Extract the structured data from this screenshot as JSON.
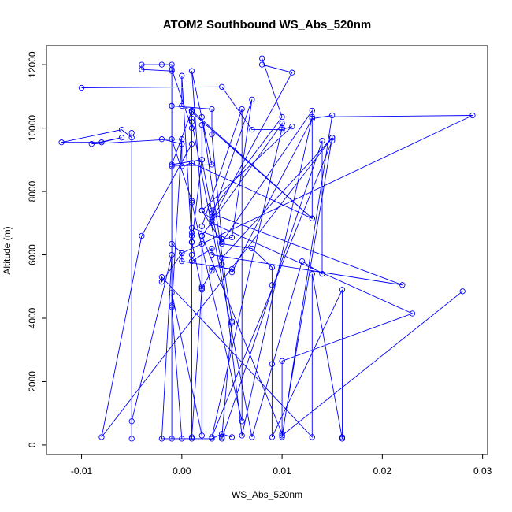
{
  "colors": {
    "series": "#0000ff",
    "axis": "#000000",
    "background": "#ffffff"
  },
  "chart_data": {
    "type": "line",
    "title": "ATOM2 Southbound WS_Abs_520nm",
    "xlabel": "WS_Abs_520nm",
    "ylabel": "Altitude (m)",
    "xlim": [
      -0.0135,
      0.0305
    ],
    "ylim": [
      -300,
      12600
    ],
    "x_ticks": [
      -0.01,
      0.0,
      0.01,
      0.02,
      0.03
    ],
    "x_tick_labels": [
      "-0.01",
      "0.00",
      "0.01",
      "0.02",
      "0.03"
    ],
    "y_ticks": [
      0,
      2000,
      4000,
      6000,
      8000,
      10000,
      12000
    ],
    "y_tick_labels": [
      "0",
      "2000",
      "4000",
      "6000",
      "8000",
      "10000",
      "12000"
    ],
    "grid": false,
    "markers": "open-circle",
    "series": [
      {
        "points": [
          [
            -0.01,
            11270
          ],
          [
            0.004,
            11300
          ],
          [
            0.007,
            9950
          ],
          [
            0.01,
            9950
          ],
          [
            0.011,
            10050
          ],
          [
            0.002,
            7400
          ],
          [
            0.001,
            11800
          ],
          [
            0.003,
            8850
          ],
          [
            -0.001,
            8800
          ],
          [
            -0.001,
            10700
          ],
          [
            -0.001,
            10700
          ],
          [
            0.003,
            10600
          ],
          [
            0.003,
            9800
          ],
          [
            0.004,
            6500
          ],
          [
            0.005,
            6550
          ],
          [
            0.007,
            10900
          ],
          [
            0.003,
            7200
          ],
          [
            0.003,
            7400
          ],
          [
            0.01,
            10350
          ],
          [
            0.008,
            12200
          ],
          [
            0.008,
            12000
          ],
          [
            0.011,
            11750
          ],
          [
            0.003,
            7100
          ],
          [
            0.002,
            7400
          ],
          [
            0.004,
            6400
          ],
          [
            0.013,
            10550
          ],
          [
            0.013,
            10300
          ],
          [
            0.013,
            7150
          ],
          [
            0.001,
            10550
          ],
          [
            -0.001,
            8850
          ],
          [
            0.002,
            9000
          ],
          [
            0.004,
            5700
          ],
          [
            0.006,
            300
          ],
          [
            0.013,
            10350
          ],
          [
            0.029,
            10400
          ],
          [
            0.0,
            6050
          ],
          [
            -0.001,
            6350
          ],
          [
            -0.001,
            4350
          ],
          [
            0.0,
            9650
          ],
          [
            -0.002,
            9650
          ],
          [
            0.0,
            9500
          ],
          [
            0.0,
            8800
          ],
          [
            0.001,
            8900
          ],
          [
            0.013,
            7150
          ],
          [
            0.001,
            10500
          ],
          [
            0.001,
            9500
          ],
          [
            -0.004,
            6600
          ],
          [
            -0.008,
            250
          ],
          [
            0.015,
            9700
          ],
          [
            0.015,
            9600
          ],
          [
            0.003,
            250
          ],
          [
            0.01,
            10000
          ],
          [
            0.01,
            10150
          ],
          [
            0.002,
            6600
          ],
          [
            0.002,
            6350
          ],
          [
            0.002,
            5000
          ],
          [
            0.002,
            4900
          ],
          [
            0.001,
            6400
          ],
          [
            0.001,
            6700
          ],
          [
            0.001,
            6850
          ],
          [
            0.004,
            6500
          ],
          [
            0.004,
            6350
          ],
          [
            0.007,
            6200
          ],
          [
            0.009,
            5600
          ],
          [
            0.009,
            5050
          ],
          [
            0.009,
            2550
          ],
          [
            0.009,
            250
          ],
          [
            0.016,
            4900
          ],
          [
            0.016,
            250
          ],
          [
            0.016,
            200
          ],
          [
            0.013,
            5400
          ],
          [
            0.013,
            250
          ],
          [
            -0.002,
            5300
          ],
          [
            -0.002,
            5150
          ],
          [
            0.0,
            6050
          ],
          [
            0.0,
            5800
          ],
          [
            0.005,
            5550
          ],
          [
            0.005,
            5450
          ],
          [
            0.013,
            10300
          ],
          [
            0.015,
            10400
          ],
          [
            0.01,
            250
          ],
          [
            0.01,
            300
          ],
          [
            0.028,
            4850
          ],
          [
            0.01,
            300
          ],
          [
            0.015,
            9700
          ],
          [
            0.004,
            5900
          ],
          [
            0.004,
            5700
          ],
          [
            0.003,
            5600
          ],
          [
            0.003,
            5500
          ],
          [
            0.002,
            4950
          ],
          [
            0.001,
            250
          ],
          [
            0.001,
            200
          ],
          [
            0.001,
            10300
          ],
          [
            0.001,
            10200
          ],
          [
            0.007,
            250
          ],
          [
            0.012,
            5800
          ],
          [
            0.014,
            5400
          ],
          [
            0.014,
            9600
          ],
          [
            0.004,
            200
          ],
          [
            0.004,
            250
          ],
          [
            0.005,
            3900
          ],
          [
            0.005,
            3850
          ],
          [
            0.002,
            10350
          ],
          [
            0.002,
            10100
          ],
          [
            0.002,
            9000
          ],
          [
            0.001,
            6400
          ],
          [
            0.001,
            6000
          ],
          [
            0.001,
            5800
          ],
          [
            0.003,
            6200
          ],
          [
            0.003,
            6000
          ],
          [
            0.022,
            5050
          ],
          [
            0.003,
            7300
          ],
          [
            0.003,
            7000
          ],
          [
            0.023,
            4150
          ],
          [
            0.01,
            2650
          ],
          [
            0.01,
            350
          ],
          [
            0.002,
            6600
          ],
          [
            0.002,
            300
          ],
          [
            -0.001,
            4800
          ],
          [
            -0.001,
            4400
          ],
          [
            0.0,
            200
          ],
          [
            -0.002,
            200
          ],
          [
            -0.001,
            6000
          ],
          [
            -0.005,
            750
          ],
          [
            -0.005,
            200
          ],
          [
            -0.005,
            9850
          ],
          [
            -0.005,
            9700
          ],
          [
            -0.006,
            9950
          ],
          [
            -0.012,
            9550
          ],
          [
            -0.008,
            9550
          ],
          [
            -0.006,
            9700
          ],
          [
            -0.009,
            9500
          ],
          [
            -0.001,
            9650
          ],
          [
            0.001,
            7700
          ],
          [
            0.001,
            7650
          ],
          [
            0.006,
            750
          ],
          [
            0.006,
            10600
          ],
          [
            0.002,
            6900
          ],
          [
            0.002,
            6600
          ],
          [
            0.001,
            6600
          ],
          [
            0.001,
            6400
          ],
          [
            0.0,
            11650
          ],
          [
            0.0,
            10700
          ],
          [
            0.001,
            10550
          ],
          [
            0.001,
            10000
          ],
          [
            -0.001,
            11850
          ],
          [
            -0.001,
            11800
          ],
          [
            -0.004,
            11850
          ],
          [
            -0.004,
            12000
          ],
          [
            -0.002,
            12000
          ],
          [
            -0.001,
            12000
          ],
          [
            -0.001,
            200
          ],
          [
            0.003,
            200
          ],
          [
            0.004,
            350
          ],
          [
            0.005,
            250
          ]
        ]
      }
    ]
  }
}
